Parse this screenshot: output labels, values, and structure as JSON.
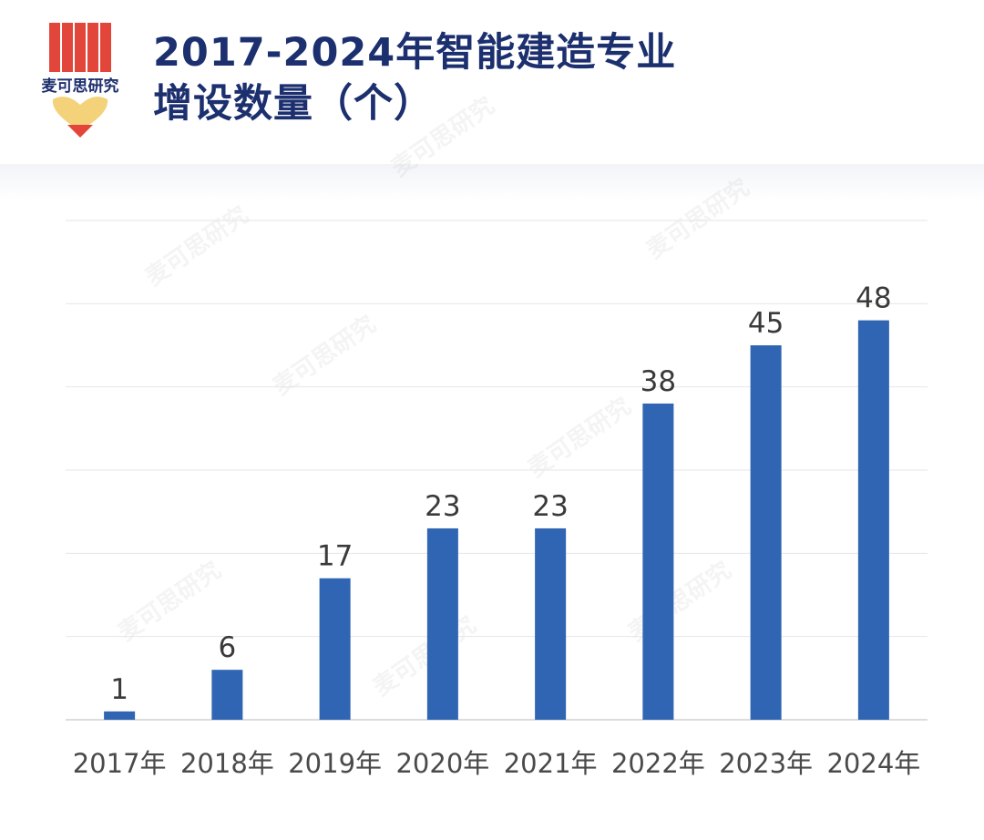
{
  "header": {
    "logo_text": "麦可思研究",
    "title_line1": "2017-2024年智能建造专业",
    "title_line2": "增设数量（个）"
  },
  "watermark": "麦可思研究",
  "colors": {
    "bar": "#2f65b3",
    "title": "#1c2f6e",
    "logo_red": "#e2453a",
    "logo_yellow": "#f3d27a"
  },
  "chart_data": {
    "type": "bar",
    "title": "2017-2024年智能建造专业增设数量（个）",
    "categories": [
      "2017年",
      "2018年",
      "2019年",
      "2020年",
      "2021年",
      "2022年",
      "2023年",
      "2024年"
    ],
    "values": [
      1,
      6,
      17,
      23,
      23,
      38,
      45,
      48
    ],
    "xlabel": "",
    "ylabel": "",
    "ylim": [
      0,
      60
    ],
    "grid": true,
    "legend": "none"
  }
}
